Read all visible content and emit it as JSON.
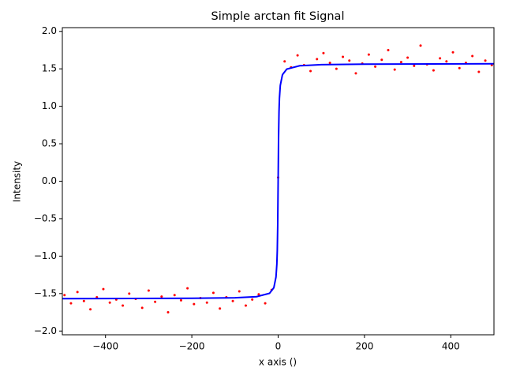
{
  "chart_data": {
    "type": "scatter+line",
    "title": "Simple arctan fit Signal",
    "xlabel": "x axis ()",
    "ylabel": "Intensity",
    "xlim": [
      -500,
      500
    ],
    "ylim": [
      -2.05,
      2.05
    ],
    "xticks": [
      {
        "value": -400,
        "label": "−400"
      },
      {
        "value": -200,
        "label": "−200"
      },
      0,
      200,
      400
    ],
    "yticks": [
      {
        "value": -2.0,
        "label": "−2.0"
      },
      {
        "value": -1.5,
        "label": "−1.5"
      },
      {
        "value": -1.0,
        "label": "−1.0"
      },
      {
        "value": -0.5,
        "label": "−0.5"
      },
      {
        "value": 0.0,
        "label": "0.0"
      },
      {
        "value": 0.5,
        "label": "0.5"
      },
      {
        "value": 1.0,
        "label": "1.0"
      },
      {
        "value": 1.5,
        "label": "1.5"
      },
      {
        "value": 2.0,
        "label": "2.0"
      }
    ],
    "series": [
      {
        "kind": "scatter",
        "color": "#ff0000",
        "x": [
          -495,
          -480,
          -465,
          -450,
          -435,
          -420,
          -405,
          -390,
          -375,
          -360,
          -345,
          -330,
          -315,
          -300,
          -285,
          -270,
          -255,
          -240,
          -225,
          -210,
          -195,
          -180,
          -165,
          -150,
          -135,
          -120,
          -105,
          -90,
          -75,
          -60,
          -45,
          -30,
          -15,
          0,
          15,
          30,
          45,
          60,
          75,
          90,
          105,
          120,
          135,
          150,
          165,
          180,
          195,
          210,
          225,
          240,
          255,
          270,
          285,
          300,
          315,
          330,
          345,
          360,
          375,
          390,
          405,
          420,
          435,
          450,
          465,
          480,
          495
        ],
        "values": [
          -1.52,
          -1.63,
          -1.48,
          -1.6,
          -1.71,
          -1.55,
          -1.44,
          -1.62,
          -1.58,
          -1.66,
          -1.5,
          -1.57,
          -1.69,
          -1.46,
          -1.61,
          -1.54,
          -1.75,
          -1.52,
          -1.59,
          -1.43,
          -1.64,
          -1.56,
          -1.62,
          -1.49,
          -1.7,
          -1.55,
          -1.6,
          -1.47,
          -1.66,
          -1.58,
          -1.51,
          -1.63,
          -1.45,
          0.05,
          1.6,
          1.52,
          1.68,
          1.55,
          1.47,
          1.63,
          1.71,
          1.58,
          1.5,
          1.66,
          1.61,
          1.44,
          1.57,
          1.69,
          1.53,
          1.62,
          1.75,
          1.49,
          1.59,
          1.65,
          1.54,
          1.81,
          1.56,
          1.48,
          1.64,
          1.6,
          1.72,
          1.51,
          1.58,
          1.67,
          1.46,
          1.61,
          1.55
        ]
      },
      {
        "kind": "line",
        "color": "#0000ff",
        "x": [
          -500,
          -200,
          -100,
          -50,
          -20,
          -10,
          -5,
          -3,
          -2,
          -1,
          0,
          1,
          2,
          3,
          5,
          10,
          20,
          50,
          100,
          200,
          500
        ],
        "values": [
          -1.568,
          -1.563,
          -1.556,
          -1.541,
          -1.496,
          -1.422,
          -1.279,
          -1.107,
          -0.927,
          -0.588,
          0,
          0.588,
          0.927,
          1.107,
          1.279,
          1.422,
          1.496,
          1.541,
          1.556,
          1.563,
          1.568
        ]
      }
    ]
  }
}
